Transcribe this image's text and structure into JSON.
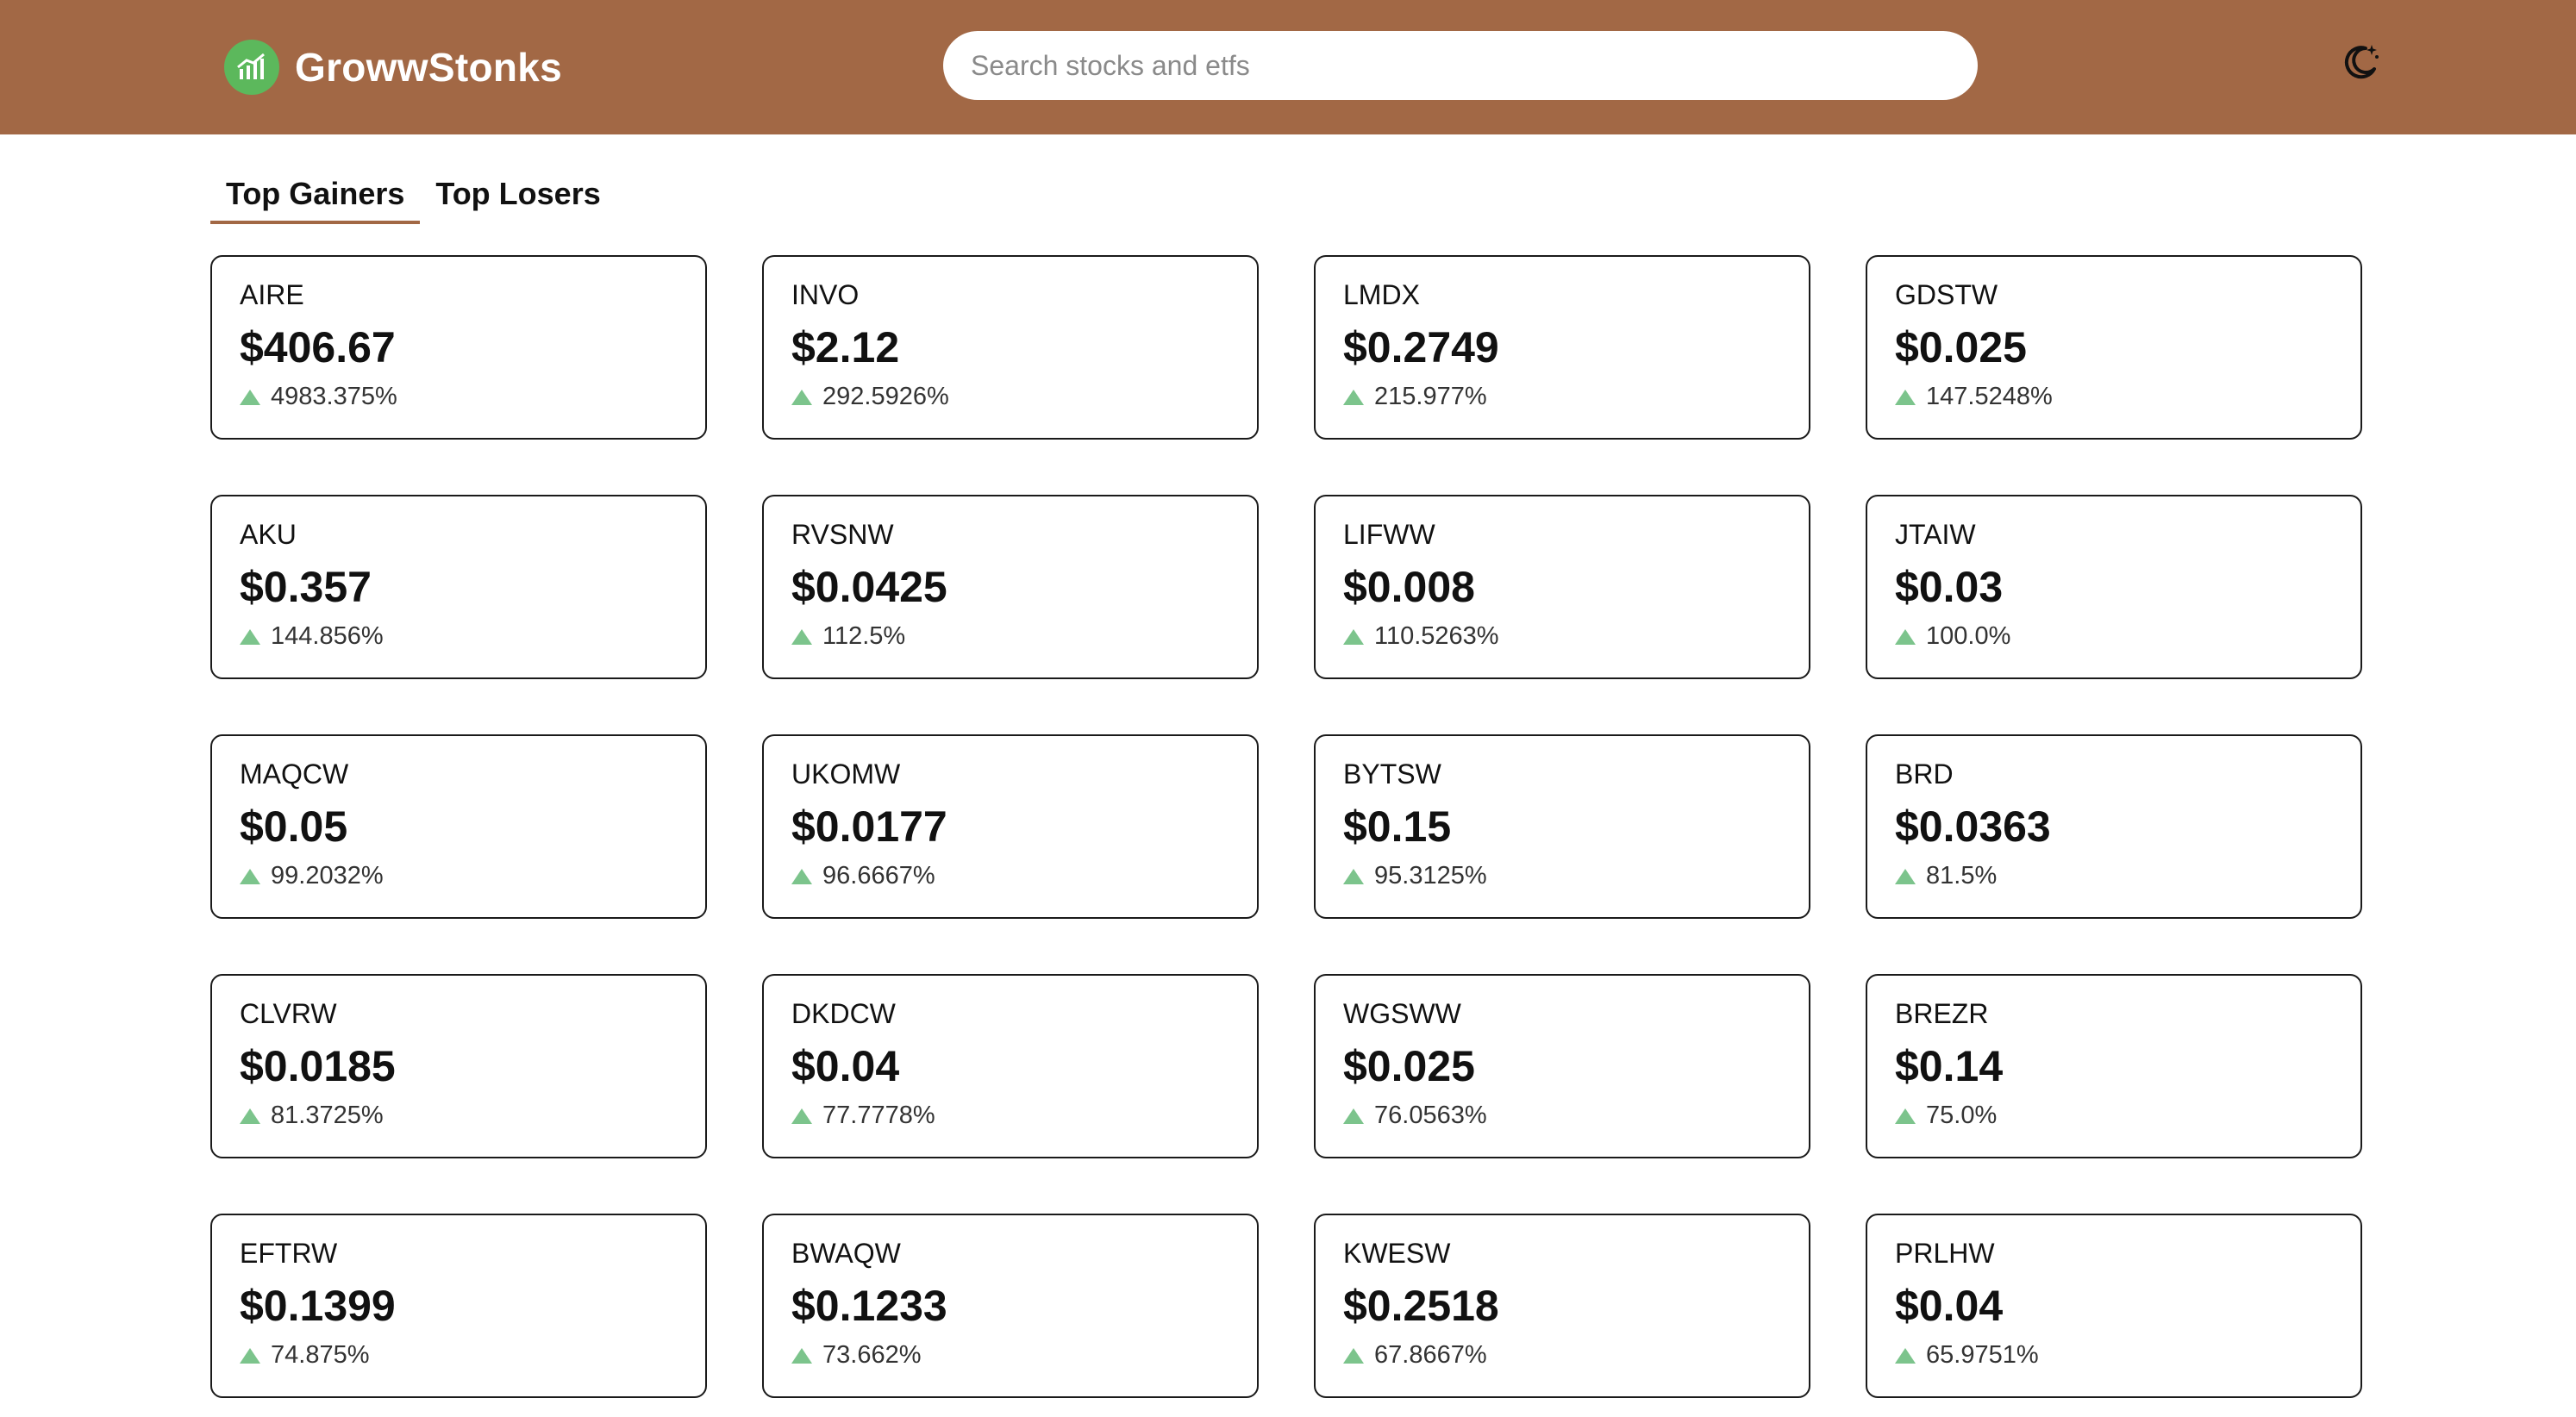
{
  "header": {
    "brand": "GrowwStonks",
    "search_placeholder": "Search stocks and etfs",
    "theme_toggle_icon": "moon-icon",
    "background_color": "#a26845"
  },
  "tabs": [
    {
      "label": "Top Gainers",
      "active": true
    },
    {
      "label": "Top Losers",
      "active": false
    }
  ],
  "colors": {
    "accent": "#a26845",
    "gain": "#7cc48c",
    "logo": "#5cb85c"
  },
  "stocks": [
    {
      "ticker": "AIRE",
      "price": "$406.67",
      "change": "4983.375%"
    },
    {
      "ticker": "INVO",
      "price": "$2.12",
      "change": "292.5926%"
    },
    {
      "ticker": "LMDX",
      "price": "$0.2749",
      "change": "215.977%"
    },
    {
      "ticker": "GDSTW",
      "price": "$0.025",
      "change": "147.5248%"
    },
    {
      "ticker": "AKU",
      "price": "$0.357",
      "change": "144.856%"
    },
    {
      "ticker": "RVSNW",
      "price": "$0.0425",
      "change": "112.5%"
    },
    {
      "ticker": "LIFWW",
      "price": "$0.008",
      "change": "110.5263%"
    },
    {
      "ticker": "JTAIW",
      "price": "$0.03",
      "change": "100.0%"
    },
    {
      "ticker": "MAQCW",
      "price": "$0.05",
      "change": "99.2032%"
    },
    {
      "ticker": "UKOMW",
      "price": "$0.0177",
      "change": "96.6667%"
    },
    {
      "ticker": "BYTSW",
      "price": "$0.15",
      "change": "95.3125%"
    },
    {
      "ticker": "BRD",
      "price": "$0.0363",
      "change": "81.5%"
    },
    {
      "ticker": "CLVRW",
      "price": "$0.0185",
      "change": "81.3725%"
    },
    {
      "ticker": "DKDCW",
      "price": "$0.04",
      "change": "77.7778%"
    },
    {
      "ticker": "WGSWW",
      "price": "$0.025",
      "change": "76.0563%"
    },
    {
      "ticker": "BREZR",
      "price": "$0.14",
      "change": "75.0%"
    },
    {
      "ticker": "EFTRW",
      "price": "$0.1399",
      "change": "74.875%"
    },
    {
      "ticker": "BWAQW",
      "price": "$0.1233",
      "change": "73.662%"
    },
    {
      "ticker": "KWESW",
      "price": "$0.2518",
      "change": "67.8667%"
    },
    {
      "ticker": "PRLHW",
      "price": "$0.04",
      "change": "65.9751%"
    }
  ]
}
